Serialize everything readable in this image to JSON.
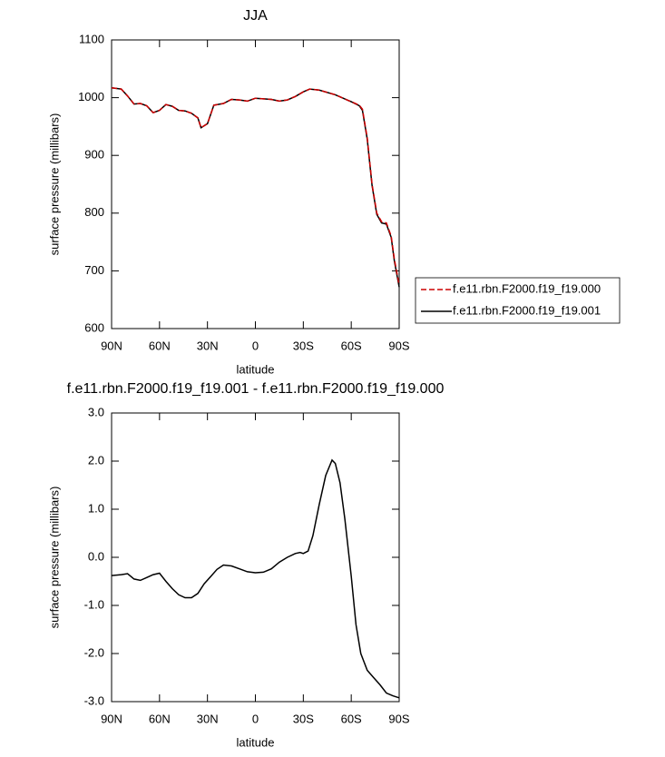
{
  "chart_data": [
    {
      "type": "line",
      "title": "JJA",
      "xlabel": "latitude",
      "ylabel": "surface pressure (millibars)",
      "xlim": [
        90,
        -90
      ],
      "ylim": [
        600,
        1100
      ],
      "xticks": [
        {
          "value": 90,
          "label": "90N"
        },
        {
          "value": 60,
          "label": "60N"
        },
        {
          "value": 30,
          "label": "30N"
        },
        0,
        {
          "value": -30,
          "label": "30S"
        },
        {
          "value": -60,
          "label": "60S"
        },
        {
          "value": -90,
          "label": "90S"
        }
      ],
      "yticks": [
        600,
        700,
        800,
        900,
        1000,
        1100
      ],
      "legend": "right",
      "x": [
        90,
        84,
        80,
        76,
        72,
        68,
        64,
        60,
        56,
        52,
        48,
        44,
        40,
        36,
        34,
        30,
        26,
        20,
        15,
        10,
        5,
        0,
        -5,
        -10,
        -15,
        -20,
        -25,
        -30,
        -34,
        -40,
        -50,
        -60,
        -65,
        -67,
        -70,
        -73,
        -76,
        -79,
        -82,
        -85,
        -87,
        -90
      ],
      "series": [
        {
          "name": "f.e11.rbn.F2000.f19_f19.000",
          "color": "#cc0000",
          "style": "dashed",
          "values": [
            1017,
            1015,
            1003,
            989,
            990,
            986,
            974,
            978,
            988,
            985,
            978,
            977,
            973,
            965,
            948,
            955,
            987,
            990,
            997,
            996,
            994,
            999,
            998,
            997,
            994,
            996,
            1002,
            1010,
            1015,
            1013,
            1005,
            993,
            987,
            980,
            930,
            850,
            800,
            785,
            783,
            760,
            720,
            675
          ]
        },
        {
          "name": "f.e11.rbn.F2000.f19_f19.001",
          "color": "#000000",
          "style": "solid",
          "values": [
            1017,
            1015,
            1003,
            989,
            990,
            986,
            974,
            978,
            988,
            985,
            978,
            977,
            973,
            965,
            948,
            955,
            987,
            990,
            997,
            996,
            994,
            999,
            998,
            997,
            994,
            996,
            1002,
            1010,
            1015,
            1013,
            1005,
            993,
            986,
            978,
            928,
            848,
            798,
            783,
            781,
            758,
            717,
            672
          ]
        }
      ]
    },
    {
      "type": "line",
      "title": "f.e11.rbn.F2000.f19_f19.001 - f.e11.rbn.F2000.f19_f19.000",
      "xlabel": "latitude",
      "ylabel": "surface pressure (millibars)",
      "xlim": [
        90,
        -90
      ],
      "ylim": [
        -3,
        3
      ],
      "xticks": [
        {
          "value": 90,
          "label": "90N"
        },
        {
          "value": 60,
          "label": "60N"
        },
        {
          "value": 30,
          "label": "30N"
        },
        0,
        {
          "value": -30,
          "label": "30S"
        },
        {
          "value": -60,
          "label": "60S"
        },
        {
          "value": -90,
          "label": "90S"
        }
      ],
      "yticks": [
        {
          "value": -3,
          "label": "-3.0"
        },
        {
          "value": -2,
          "label": "-2.0"
        },
        {
          "value": -1,
          "label": "-1.0"
        },
        {
          "value": 0,
          "label": "0.0"
        },
        {
          "value": 1,
          "label": "1.0"
        },
        {
          "value": 2,
          "label": "2.0"
        },
        {
          "value": 3,
          "label": "3.0"
        }
      ],
      "color": "#000000",
      "x": [
        90,
        84,
        80,
        76,
        72,
        68,
        64,
        60,
        56,
        52,
        48,
        44,
        40,
        36,
        32,
        28,
        24,
        20,
        15,
        10,
        5,
        0,
        -5,
        -10,
        -15,
        -20,
        -25,
        -28,
        -30,
        -33,
        -36,
        -40,
        -44,
        -48,
        -50,
        -53,
        -56,
        -60,
        -63,
        -66,
        -70,
        -74,
        -78,
        -82,
        -86,
        -90
      ],
      "values": [
        -0.38,
        -0.36,
        -0.34,
        -0.45,
        -0.48,
        -0.42,
        -0.36,
        -0.33,
        -0.5,
        -0.65,
        -0.78,
        -0.84,
        -0.84,
        -0.75,
        -0.55,
        -0.4,
        -0.25,
        -0.16,
        -0.18,
        -0.24,
        -0.3,
        -0.32,
        -0.31,
        -0.24,
        -0.1,
        0,
        0.08,
        0.1,
        0.08,
        0.13,
        0.45,
        1.1,
        1.7,
        2.02,
        1.95,
        1.55,
        0.8,
        -0.4,
        -1.4,
        -2.0,
        -2.35,
        -2.5,
        -2.65,
        -2.82,
        -2.88,
        -2.92
      ]
    }
  ]
}
